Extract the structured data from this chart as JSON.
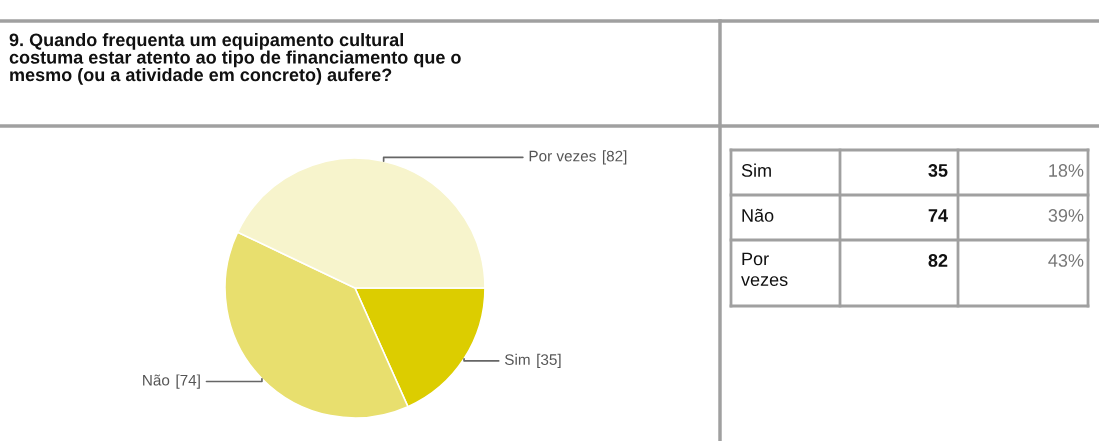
{
  "chart_data": {
    "type": "pie",
    "title": "9. Quando frequenta um equipamento cultural\ncostuma estar atento ao tipo de financiamento que o\nmesmo (ou a atividade em concreto) aufere?",
    "categories": [
      "Sim",
      "Não",
      "Por vezes"
    ],
    "values": [
      35,
      74,
      82
    ],
    "colors": [
      "#dccd00",
      "#e8df6e",
      "#f7f4cc"
    ],
    "value_labels": [
      "[35]",
      "[74]",
      "[82]"
    ],
    "annotations": [
      "Sim",
      "35",
      "18%",
      "Não",
      "74",
      "39%",
      "Por vezes",
      "82",
      "43%"
    ]
  }
}
